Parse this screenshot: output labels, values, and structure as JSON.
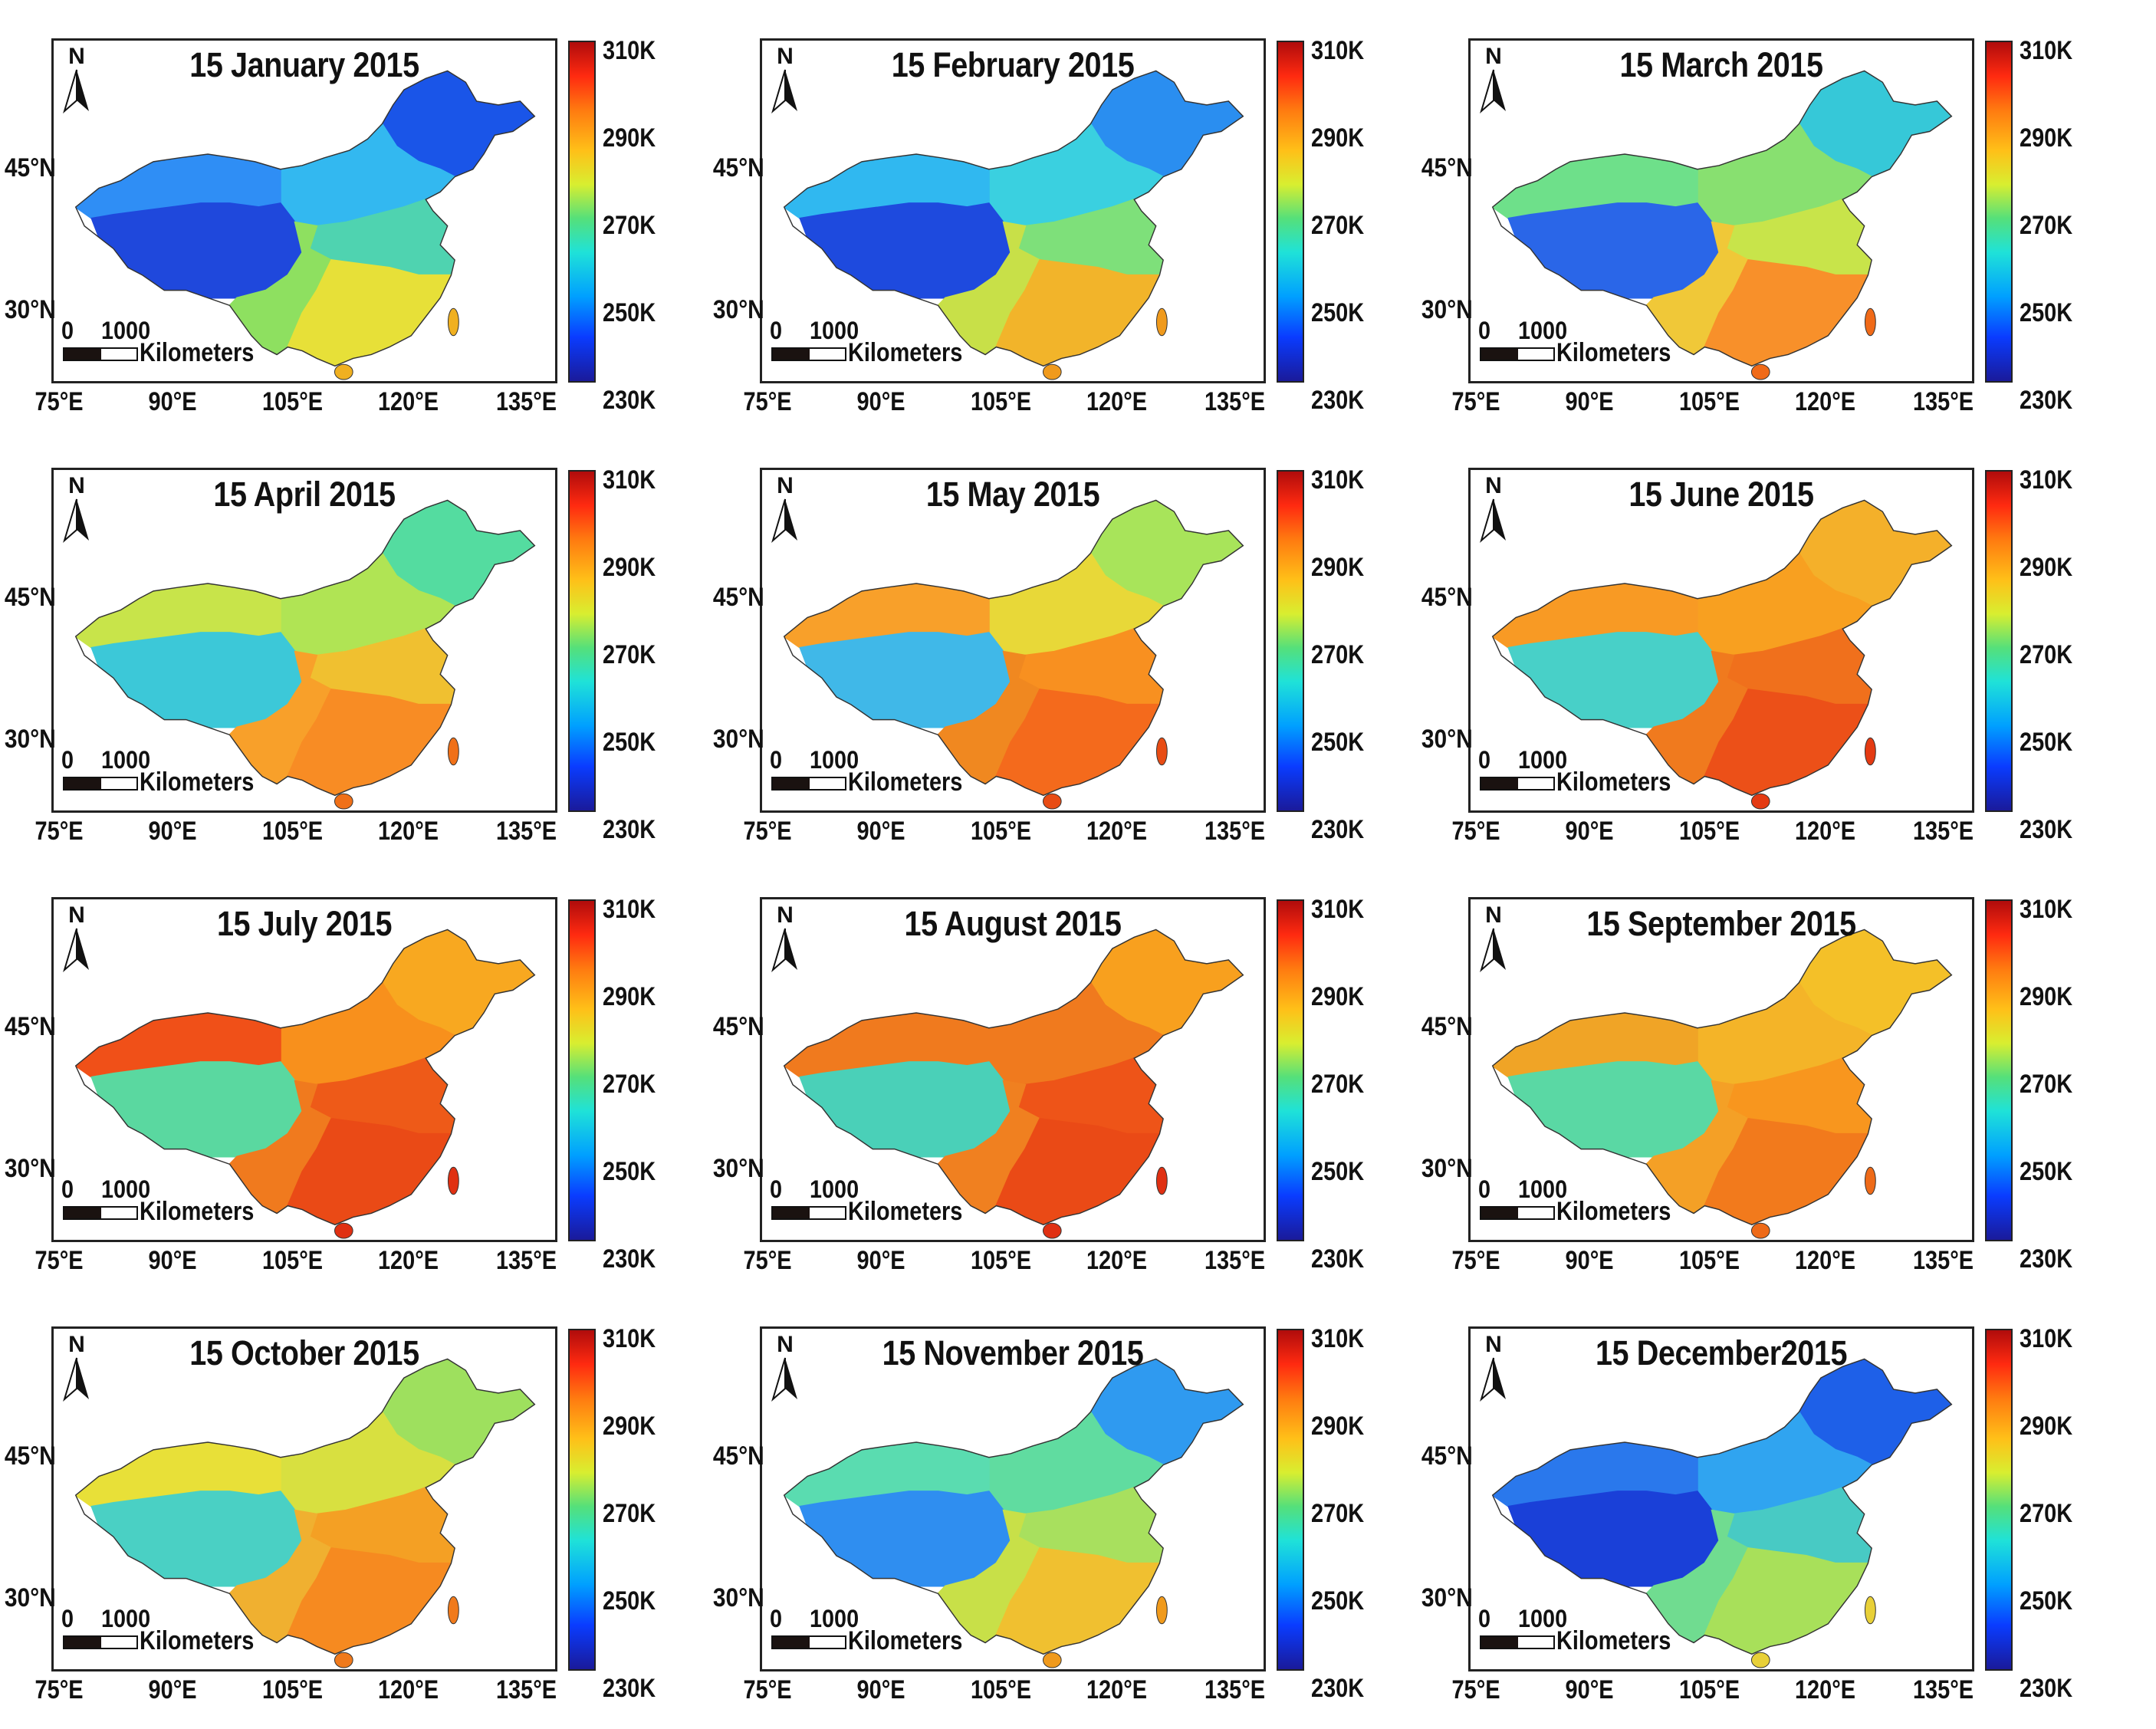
{
  "colorbar": {
    "labels": [
      "310K",
      "290K",
      "270K",
      "250K",
      "230K"
    ],
    "range": [
      230,
      310
    ],
    "unit": "K"
  },
  "axes": {
    "lat_labels": [
      "45°N",
      "30°N"
    ],
    "lon_labels": [
      "75°E",
      "90°E",
      "105°E",
      "120°E",
      "135°E"
    ]
  },
  "north_arrow": {
    "label": "N"
  },
  "scale_bar": {
    "start": "0",
    "end": "1000",
    "unit": "Kilometers"
  },
  "colors": {
    "cold": "#1030e0",
    "cool": "#20c8ff",
    "mild": "#60e080",
    "warm": "#f8d020",
    "hot": "#ff7a10",
    "very_hot": "#f03010",
    "extreme": "#b00c0c"
  },
  "panels": [
    {
      "title": "15 January 2015",
      "regions": {
        "northeast": "#1a55e8",
        "northwest": "#2f8ef5",
        "tibet": "#1f48dc",
        "north": "#33b8f0",
        "east": "#4fd3b0",
        "south": "#e7e038",
        "southwest": "#8ee060",
        "islands": "#f0b020"
      }
    },
    {
      "title": "15 February 2015",
      "regions": {
        "northeast": "#2a8ef0",
        "northwest": "#30b8f0",
        "tibet": "#1e4ade",
        "north": "#3ad0e0",
        "east": "#7ee07a",
        "south": "#f2b42a",
        "southwest": "#c8e048",
        "islands": "#f09a1c"
      }
    },
    {
      "title": "15 March 2015",
      "regions": {
        "northeast": "#36c8d8",
        "northwest": "#6ee08a",
        "tibet": "#2a66e8",
        "north": "#88e070",
        "east": "#c8e44a",
        "south": "#f8902a",
        "southwest": "#f0c838",
        "islands": "#f06a18"
      }
    },
    {
      "title": "15 April 2015",
      "regions": {
        "northeast": "#54dca0",
        "northwest": "#c8e44a",
        "tibet": "#3cc8d8",
        "north": "#b0e454",
        "east": "#f0c030",
        "south": "#f88c24",
        "southwest": "#f8a02a",
        "islands": "#f07018"
      }
    },
    {
      "title": "15 May 2015",
      "regions": {
        "northeast": "#a8e45a",
        "northwest": "#f8a02a",
        "tibet": "#40b8e8",
        "north": "#e8d838",
        "east": "#f89020",
        "south": "#f46a1c",
        "southwest": "#f08820",
        "islands": "#e84c14"
      }
    },
    {
      "title": "15 June 2015",
      "regions": {
        "northeast": "#f4b02a",
        "northwest": "#f89a24",
        "tibet": "#48d0c8",
        "north": "#f8a020",
        "east": "#f0701c",
        "south": "#ec5018",
        "southwest": "#f07a1e",
        "islands": "#e43a12"
      }
    },
    {
      "title": "15 July 2015",
      "regions": {
        "northeast": "#f8a820",
        "northwest": "#f05018",
        "tibet": "#5ad8a0",
        "north": "#f8901c",
        "east": "#ee5a18",
        "south": "#ea4a16",
        "southwest": "#f07a1e",
        "islands": "#e03012"
      }
    },
    {
      "title": "15 August 2015",
      "regions": {
        "northeast": "#f8a01e",
        "northwest": "#f07a1e",
        "tibet": "#4ad0b8",
        "north": "#f07a1e",
        "east": "#ee5418",
        "south": "#ea4a16",
        "southwest": "#f08020",
        "islands": "#e03012"
      }
    },
    {
      "title": "15 September 2015",
      "regions": {
        "northeast": "#f4c028",
        "northwest": "#f0a426",
        "tibet": "#5ad8a4",
        "north": "#f4b428",
        "east": "#f8961e",
        "south": "#f27a1c",
        "southwest": "#f4a026",
        "islands": "#ee6a18"
      }
    },
    {
      "title": "15 October 2015",
      "regions": {
        "northeast": "#9ee05e",
        "northwest": "#e8e038",
        "tibet": "#4ad0c4",
        "north": "#d8e040",
        "east": "#f4a024",
        "south": "#f68a20",
        "southwest": "#f0b030",
        "islands": "#f07a1c"
      }
    },
    {
      "title": "15 November 2015",
      "regions": {
        "northeast": "#2f9af0",
        "northwest": "#5adcb0",
        "tibet": "#2f8ef0",
        "north": "#60dca0",
        "east": "#a8e05e",
        "south": "#f0c030",
        "southwest": "#c8e048",
        "islands": "#f09a1c"
      }
    },
    {
      "title": "15 December2015",
      "regions": {
        "northeast": "#1e60e8",
        "northwest": "#2a78ec",
        "tibet": "#1a40d8",
        "north": "#30a4f0",
        "east": "#48cac4",
        "south": "#a8e05a",
        "southwest": "#70dc90",
        "islands": "#e8d038"
      }
    }
  ]
}
